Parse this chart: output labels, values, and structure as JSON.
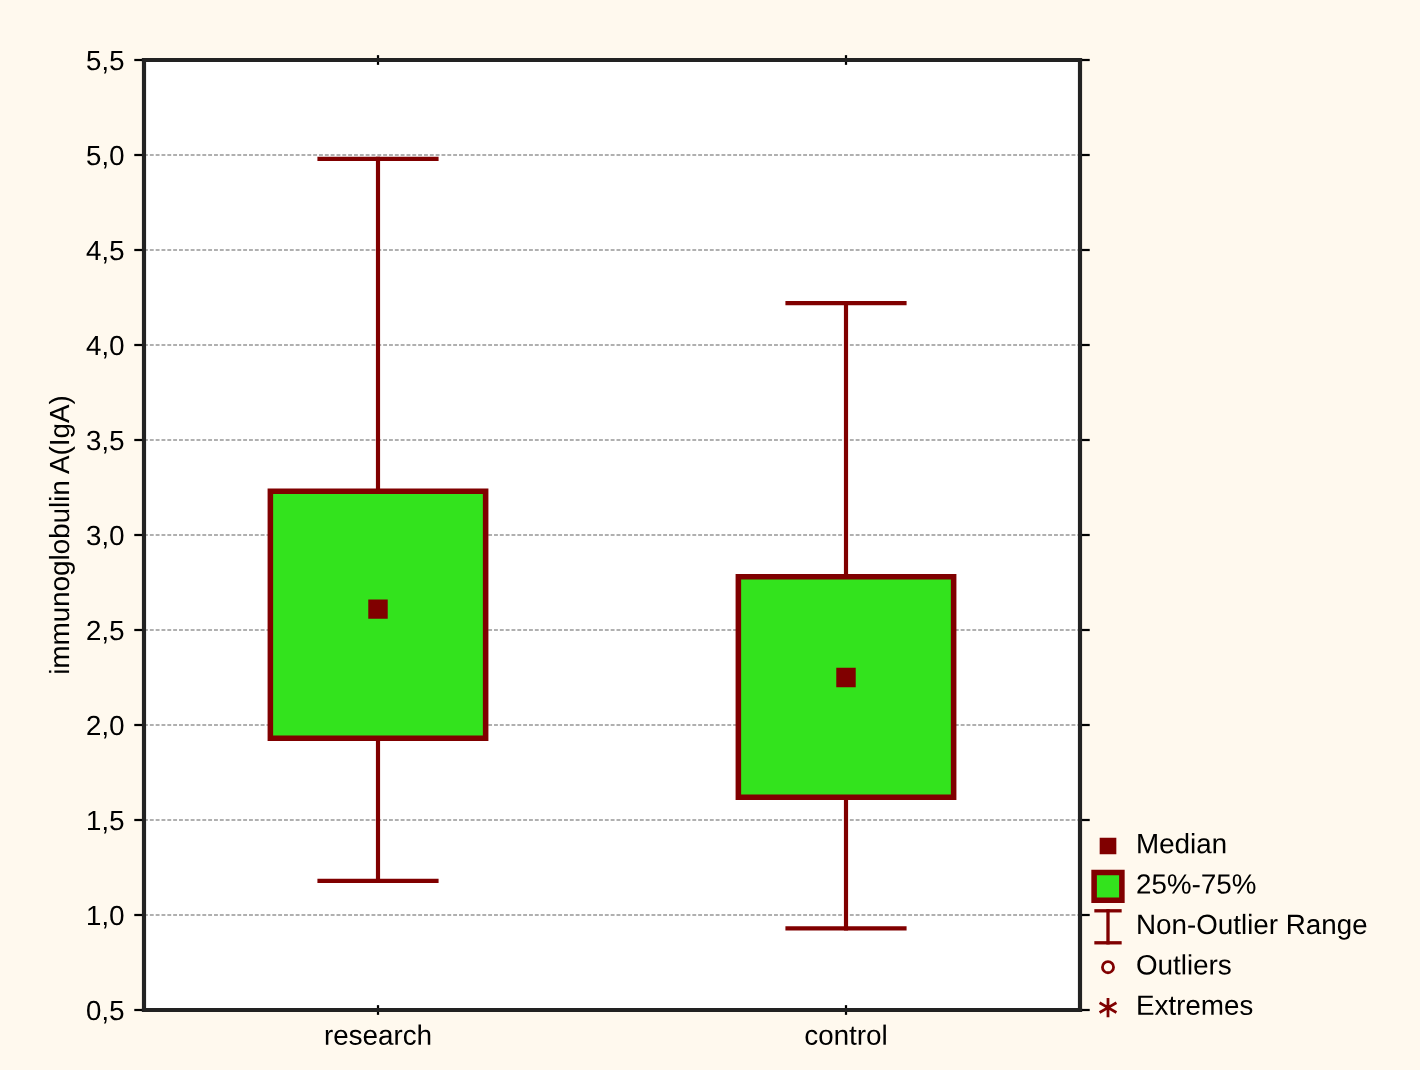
{
  "chart_data": {
    "type": "box",
    "ylabel": "immunoglobulin A(IgA)",
    "categories": [
      "research",
      "control"
    ],
    "boxes": [
      {
        "low": 1.18,
        "q1": 1.93,
        "median": 2.61,
        "q3": 3.23,
        "high": 4.98
      },
      {
        "low": 0.93,
        "q1": 1.62,
        "median": 2.25,
        "q3": 2.78,
        "high": 4.22
      }
    ],
    "color": "#33e31d",
    "ylim": [
      0.5,
      5.5
    ],
    "yticks": [
      {
        "value": 0.5,
        "label": "0,5"
      },
      {
        "value": 1.0,
        "label": "1,0"
      },
      {
        "value": 1.5,
        "label": "1,5"
      },
      {
        "value": 2.0,
        "label": "2,0"
      },
      {
        "value": 2.5,
        "label": "2,5"
      },
      {
        "value": 3.0,
        "label": "3,0"
      },
      {
        "value": 3.5,
        "label": "3,5"
      },
      {
        "value": 4.0,
        "label": "4,0"
      },
      {
        "value": 4.5,
        "label": "4,5"
      },
      {
        "value": 5.0,
        "label": "5,0"
      },
      {
        "value": 5.5,
        "label": "5,5"
      }
    ],
    "grid": "y",
    "annotations": [
      "Median",
      "25%-75%",
      "Non-Outlier Range",
      "Outliers",
      "Extremes"
    ]
  }
}
